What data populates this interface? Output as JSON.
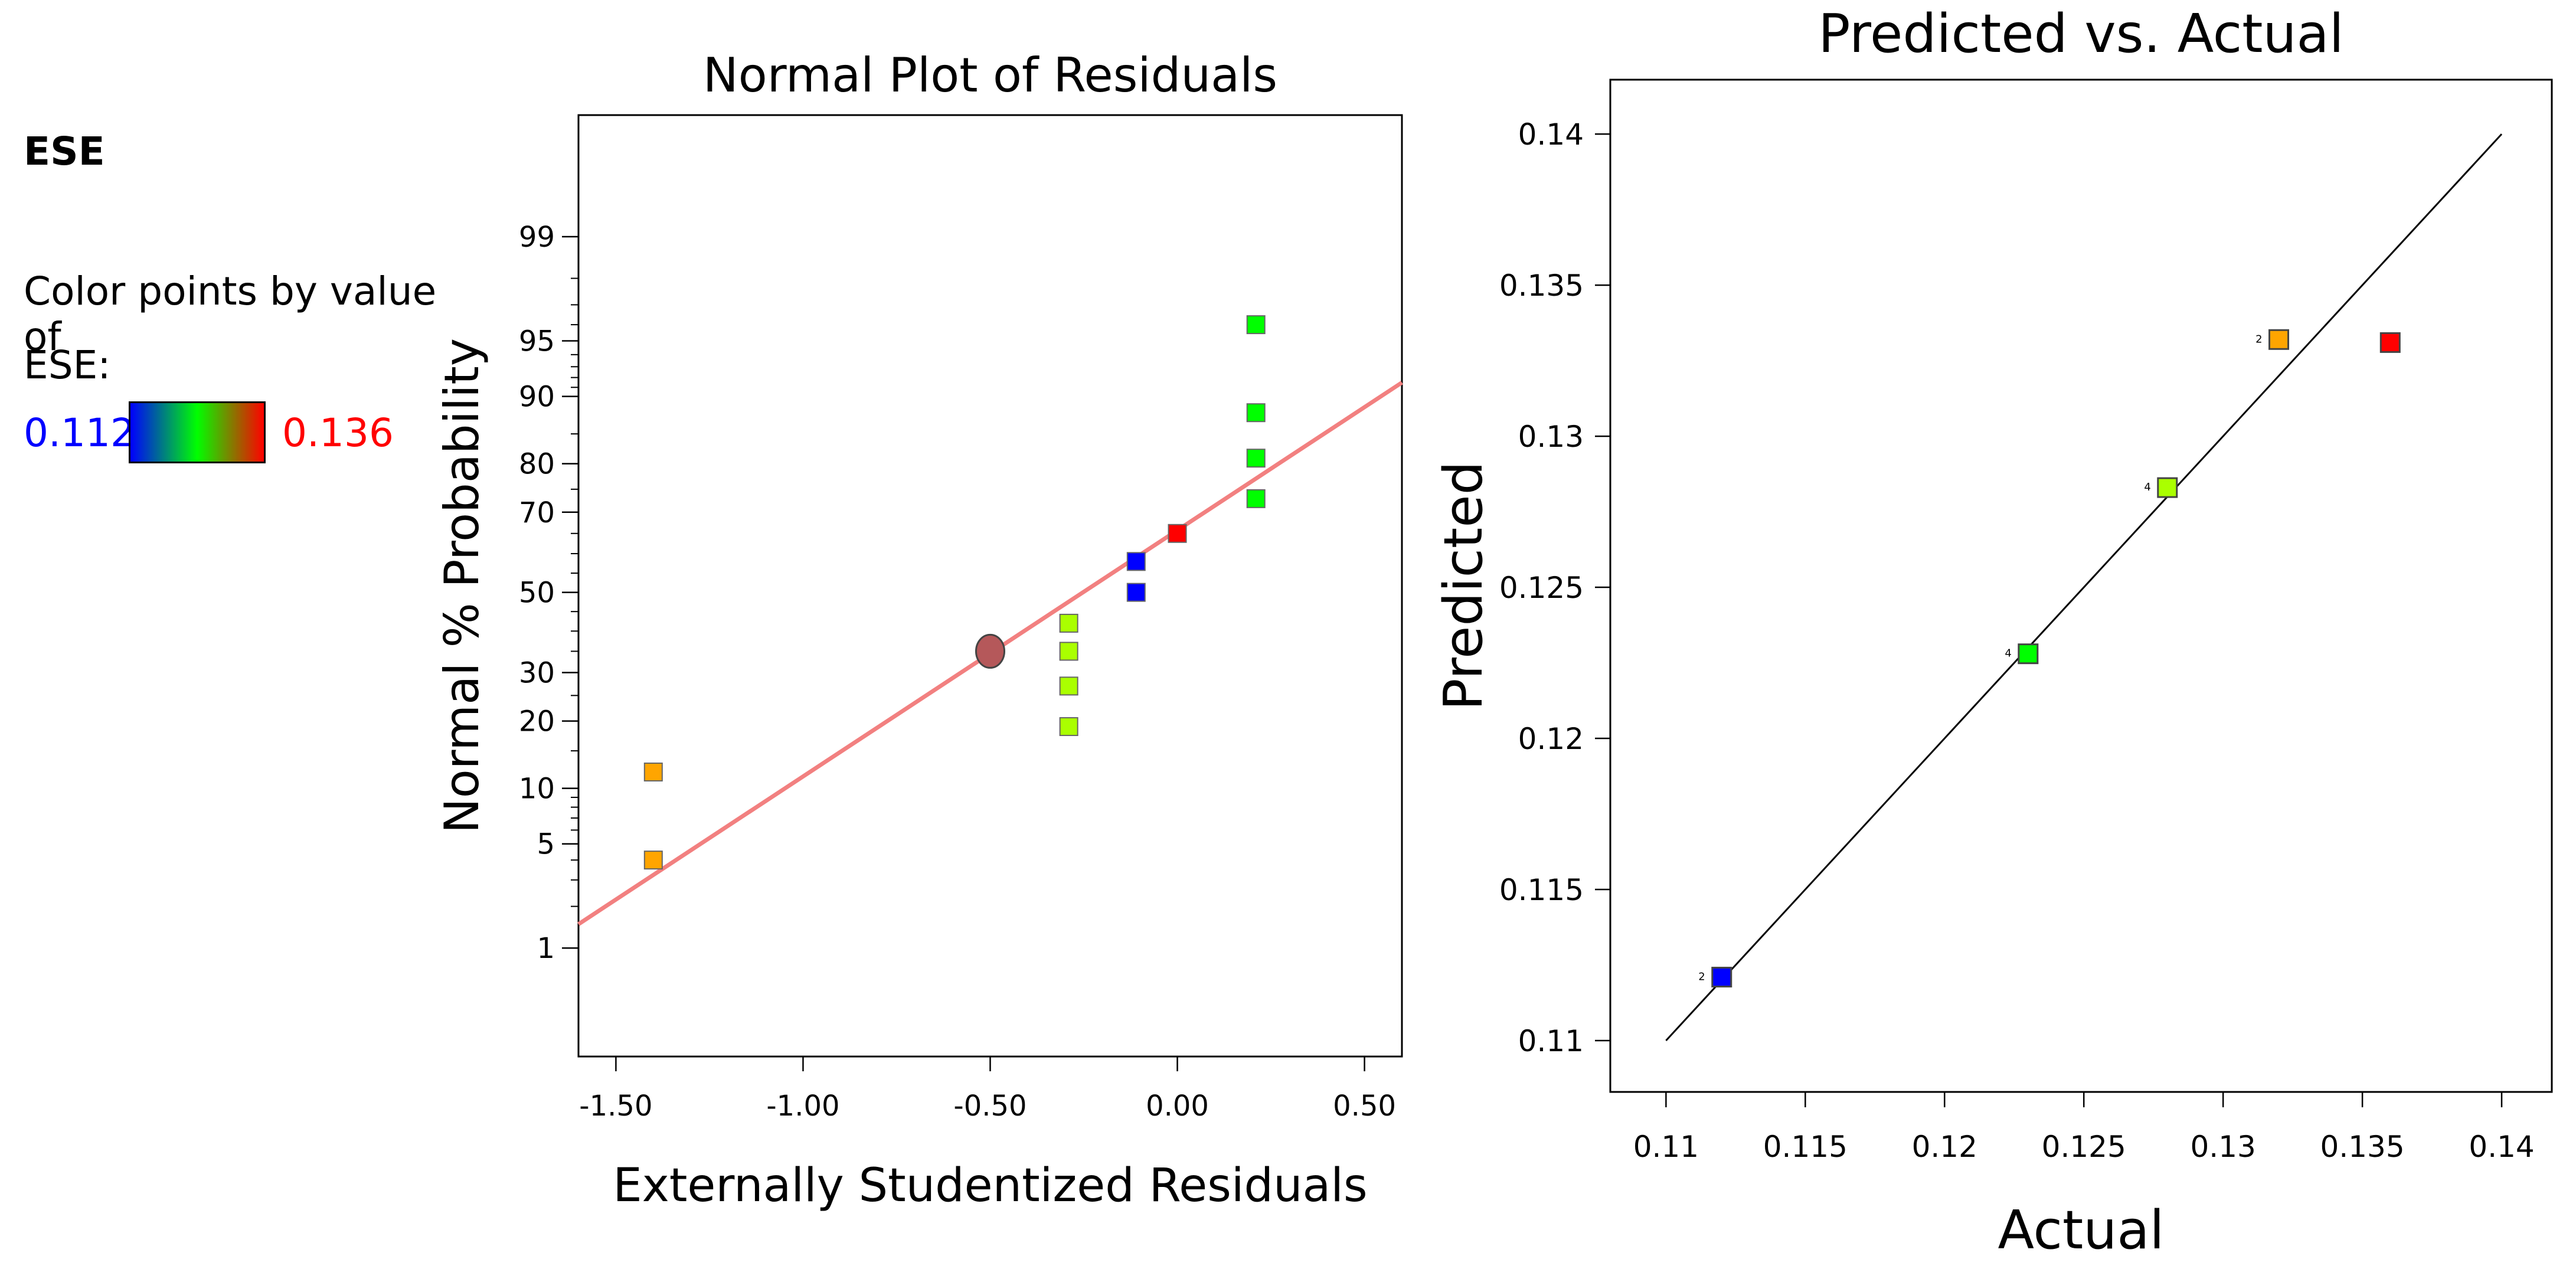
{
  "legend": {
    "title": "ESE",
    "caption_line1": "Color points by value of",
    "caption_line2": "ESE:",
    "min_label": "0.112",
    "max_label": "0.136",
    "min_color": "#0000ff",
    "max_color": "#ff0000",
    "gradient_colors": [
      "#0000ff",
      "#00ff00",
      "#ff0000"
    ]
  },
  "chart_data": [
    {
      "type": "scatter",
      "title": "Normal Plot of Residuals",
      "xlabel": "Externally Studentized Residuals",
      "ylabel": "Normal % Probability",
      "xlim": [
        -1.6,
        0.6
      ],
      "x_ticks": [
        -1.5,
        -1.0,
        -0.5,
        0.0,
        0.5
      ],
      "x_tick_labels": [
        "-1.50",
        "-1.00",
        "-0.50",
        "0.00",
        "0.50"
      ],
      "y_scale": "normal-probability",
      "y_ticks": [
        1,
        5,
        10,
        20,
        30,
        50,
        70,
        80,
        90,
        95,
        99
      ],
      "y_tick_labels": [
        "1",
        "5",
        "10",
        "20",
        "30",
        "50",
        "70",
        "80",
        "90",
        "95",
        "99"
      ],
      "grid": false,
      "points": [
        {
          "x": -1.4,
          "y": 4,
          "color": "#ffa500"
        },
        {
          "x": -1.4,
          "y": 12,
          "color": "#ffa500"
        },
        {
          "x": -0.29,
          "y": 19,
          "color": "#aaff00"
        },
        {
          "x": -0.29,
          "y": 27,
          "color": "#aaff00"
        },
        {
          "x": -0.29,
          "y": 35,
          "color": "#aaff00"
        },
        {
          "x": -0.29,
          "y": 42,
          "color": "#aaff00"
        },
        {
          "x": -0.11,
          "y": 50,
          "color": "#0000ff"
        },
        {
          "x": -0.11,
          "y": 58,
          "color": "#0000ff"
        },
        {
          "x": 0.0,
          "y": 65,
          "color": "#ff0000"
        },
        {
          "x": 0.21,
          "y": 73,
          "color": "#00ff00"
        },
        {
          "x": 0.21,
          "y": 81,
          "color": "#00ff00"
        },
        {
          "x": 0.21,
          "y": 88,
          "color": "#00ff00"
        },
        {
          "x": 0.21,
          "y": 96,
          "color": "#00ff00"
        }
      ],
      "highlight_point": {
        "x": -0.5,
        "y": 35,
        "color": "#b5585a"
      },
      "fit_line": {
        "x": [
          -1.6,
          0.6
        ],
        "y": [
          1.5,
          91.5
        ],
        "color": "#f28080"
      }
    },
    {
      "type": "scatter",
      "title": "Predicted vs. Actual",
      "xlabel": "Actual",
      "ylabel": "Predicted",
      "xlim": [
        0.108,
        0.1418
      ],
      "ylim": [
        0.1083,
        0.1418
      ],
      "x_ticks": [
        0.11,
        0.115,
        0.12,
        0.125,
        0.13,
        0.135,
        0.14
      ],
      "x_tick_labels": [
        "0.11",
        "0.115",
        "0.12",
        "0.125",
        "0.13",
        "0.135",
        "0.14"
      ],
      "y_ticks": [
        0.11,
        0.115,
        0.12,
        0.125,
        0.13,
        0.135,
        0.14
      ],
      "y_tick_labels": [
        "0.11",
        "0.115",
        "0.12",
        "0.125",
        "0.13",
        "0.135",
        "0.14"
      ],
      "grid": false,
      "points": [
        {
          "x": 0.112,
          "y": 0.1121,
          "color": "#0000ff",
          "count_label": "2"
        },
        {
          "x": 0.123,
          "y": 0.1228,
          "color": "#00ff00",
          "count_label": "4"
        },
        {
          "x": 0.128,
          "y": 0.1283,
          "color": "#aaff00",
          "count_label": "4"
        },
        {
          "x": 0.132,
          "y": 0.1332,
          "color": "#ffa500",
          "count_label": "2"
        },
        {
          "x": 0.136,
          "y": 0.1331,
          "color": "#ff0000",
          "count_label": ""
        }
      ],
      "reference_line": {
        "x": [
          0.11,
          0.14
        ],
        "y": [
          0.11,
          0.14
        ]
      }
    }
  ]
}
